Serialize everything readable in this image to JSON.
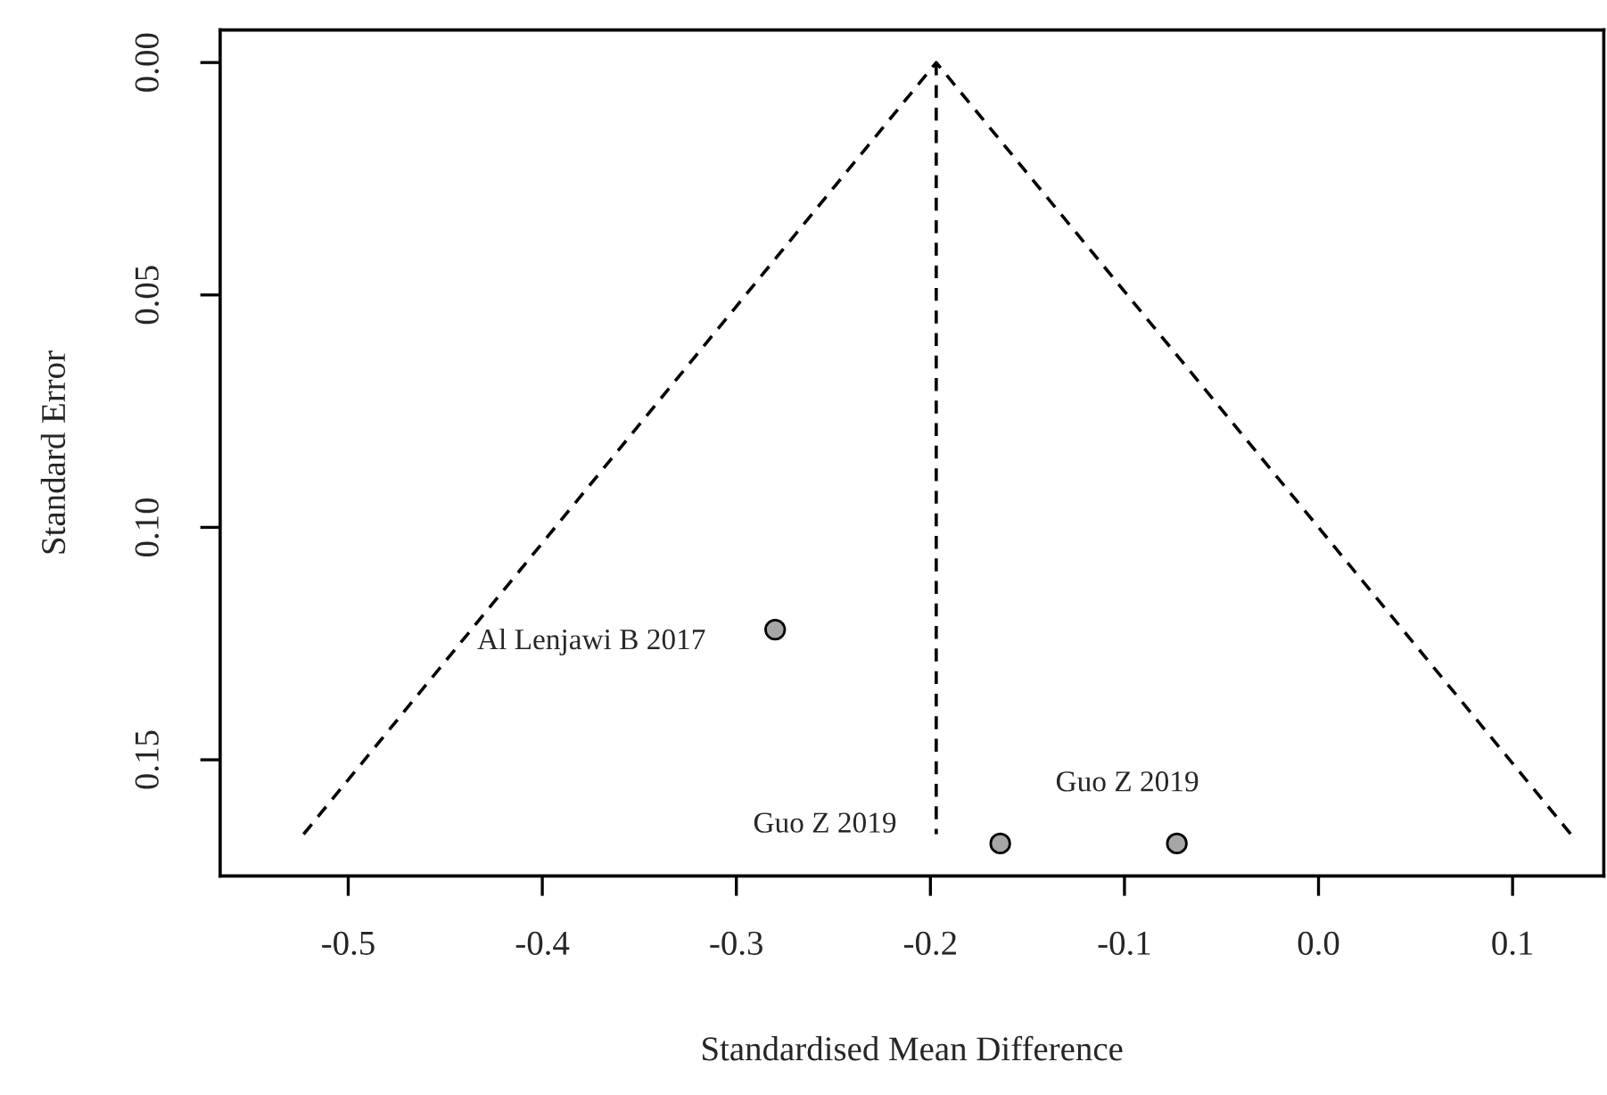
{
  "chart_data": {
    "type": "scatter",
    "xlabel": "Standardised Mean Difference",
    "ylabel": "Standard Error",
    "xlim": [
      -0.566,
      0.147
    ],
    "ylim": [
      0.175,
      -0.007
    ],
    "xticks": [
      {
        "value": -0.5,
        "label": "-0.5"
      },
      {
        "value": -0.4,
        "label": "-0.4"
      },
      {
        "value": -0.3,
        "label": "-0.3"
      },
      {
        "value": -0.2,
        "label": "-0.2"
      },
      {
        "value": -0.1,
        "label": "-0.1"
      },
      {
        "value": 0.0,
        "label": "0.0"
      },
      {
        "value": 0.1,
        "label": "0.1"
      }
    ],
    "yticks": [
      {
        "value": 0.0,
        "label": "0.00"
      },
      {
        "value": 0.05,
        "label": "0.05"
      },
      {
        "value": 0.1,
        "label": "0.10"
      },
      {
        "value": 0.15,
        "label": "0.15"
      }
    ],
    "series": [
      {
        "type": "line",
        "line_style": "dashed",
        "color": "#000000",
        "x": [
          -0.523,
          -0.197,
          0.13
        ],
        "values": [
          0.166,
          0.0,
          0.166
        ]
      },
      {
        "type": "line",
        "line_style": "dashed",
        "color": "#000000",
        "x": [
          -0.197,
          -0.197
        ],
        "values": [
          0.0,
          0.166
        ]
      },
      {
        "marker": "circle",
        "color": "#a6a6a6",
        "x": [
          -0.28,
          -0.164,
          -0.073
        ],
        "values": [
          0.122,
          0.168,
          0.168
        ]
      }
    ],
    "annotations": [
      {
        "text": "Al Lenjawi B 2017",
        "x": -0.28,
        "y": 0.122
      },
      "Guo Z 2019",
      {
        "text": "Guo Z 2019",
        "x": -0.073,
        "y": 0.168
      }
    ],
    "grid": false,
    "legend": false
  }
}
